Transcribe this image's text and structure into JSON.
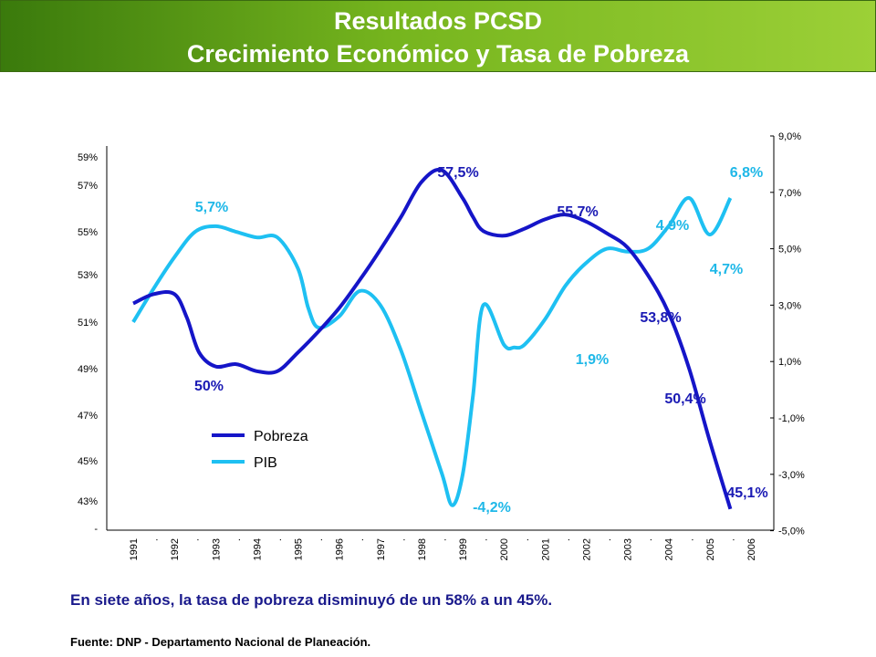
{
  "header": {
    "title_line1": "Resultados PCSD",
    "title_line2": "Crecimiento Económico y Tasa de Pobreza"
  },
  "caption": "En siete años, la tasa de pobreza disminuyó de un 58% a un 45%.",
  "source": "Fuente: DNP - Departamento Nacional de Planeación.",
  "chart_data": {
    "type": "line",
    "title": "",
    "xlabel": "",
    "ylabel_left": "",
    "ylabel_right": "",
    "x_ticks": [
      "1991",
      ".",
      "1992",
      ".",
      "1993",
      ".",
      "1994",
      ".",
      "1995",
      ".",
      "1996",
      ".",
      "1997",
      ".",
      "1998",
      ".",
      "1999",
      ".",
      "2000",
      ".",
      "2001",
      ".",
      "2002",
      ".",
      "2003",
      ".",
      "2004",
      ".",
      "2005",
      ".",
      "2006"
    ],
    "x_range": [
      1991,
      2006
    ],
    "y_left_ticks": [
      "-",
      "43%",
      "45%",
      "47%",
      "49%",
      "51%",
      "53%",
      "55%",
      "57%",
      "59%"
    ],
    "y_left_range": [
      41,
      59
    ],
    "y_right_ticks": [
      "-5,0%",
      "-3,0%",
      "-1,0%",
      "1,0%",
      "3,0%",
      "5,0%",
      "7,0%",
      "9,0%"
    ],
    "y_right_range": [
      -5,
      9
    ],
    "legend_position": "bottom-left",
    "colors": {
      "pobreza": "#1515c8",
      "pib": "#1ec0f2",
      "label_pobreza": "#1a1ab4",
      "label_pib": "#1fb8e8"
    },
    "series": [
      {
        "name": "Pobreza",
        "axis": "left",
        "x": [
          1991,
          1991.5,
          1992,
          1992.3,
          1992.6,
          1993,
          1993.5,
          1994,
          1994.5,
          1995,
          1995.5,
          1996,
          1996.5,
          1997,
          1997.5,
          1998,
          1998.5,
          1999,
          1999.25,
          1999.5,
          2000,
          2000.5,
          2001,
          2001.5,
          2002,
          2002.5,
          2003,
          2003.5,
          2004,
          2004.5,
          2005,
          2005.5
        ],
        "values": [
          51.8,
          52.2,
          52.2,
          51.2,
          49.7,
          49.1,
          49.2,
          48.9,
          48.9,
          49.7,
          50.6,
          51.6,
          52.8,
          54.1,
          55.5,
          57.0,
          57.5,
          56.3,
          55.5,
          54.9,
          54.7,
          55.0,
          55.4,
          55.6,
          55.3,
          54.8,
          54.2,
          53.0,
          51.4,
          49.0,
          45.9,
          43.0
        ]
      },
      {
        "name": "PIB",
        "axis": "right",
        "x": [
          1991,
          1991.5,
          1992,
          1992.5,
          1993,
          1993.5,
          1994,
          1994.5,
          1995,
          1995.25,
          1995.5,
          1996,
          1996.5,
          1997,
          1997.5,
          1998,
          1998.5,
          1998.75,
          1999,
          1999.25,
          1999.5,
          2000,
          2000.25,
          2000.5,
          2001,
          2001.5,
          2002,
          2002.5,
          2003,
          2003.5,
          2004,
          2004.5,
          2005,
          2005.5
        ],
        "values": [
          2.4,
          3.6,
          4.7,
          5.6,
          5.8,
          5.6,
          5.4,
          5.4,
          4.3,
          2.9,
          2.2,
          2.6,
          3.5,
          3.0,
          1.4,
          -0.8,
          -3.0,
          -4.1,
          -3.0,
          -0.2,
          3.0,
          1.6,
          1.5,
          1.6,
          2.5,
          3.7,
          4.5,
          5.0,
          4.9,
          5.0,
          5.8,
          6.8,
          5.5,
          6.8
        ]
      }
    ],
    "data_labels": [
      {
        "series": "Pobreza",
        "text": "50%"
      },
      {
        "series": "Pobreza",
        "text": "57,5%"
      },
      {
        "series": "Pobreza",
        "text": "55,7%"
      },
      {
        "series": "Pobreza",
        "text": "53,8%"
      },
      {
        "series": "Pobreza",
        "text": "50,4%"
      },
      {
        "series": "Pobreza",
        "text": "45,1%"
      },
      {
        "series": "PIB",
        "text": "5,7%"
      },
      {
        "series": "PIB",
        "text": "-4,2%"
      },
      {
        "series": "PIB",
        "text": "1,9%"
      },
      {
        "series": "PIB",
        "text": "4,9%"
      },
      {
        "series": "PIB",
        "text": "4,7%"
      },
      {
        "series": "PIB",
        "text": "6,8%"
      }
    ]
  }
}
